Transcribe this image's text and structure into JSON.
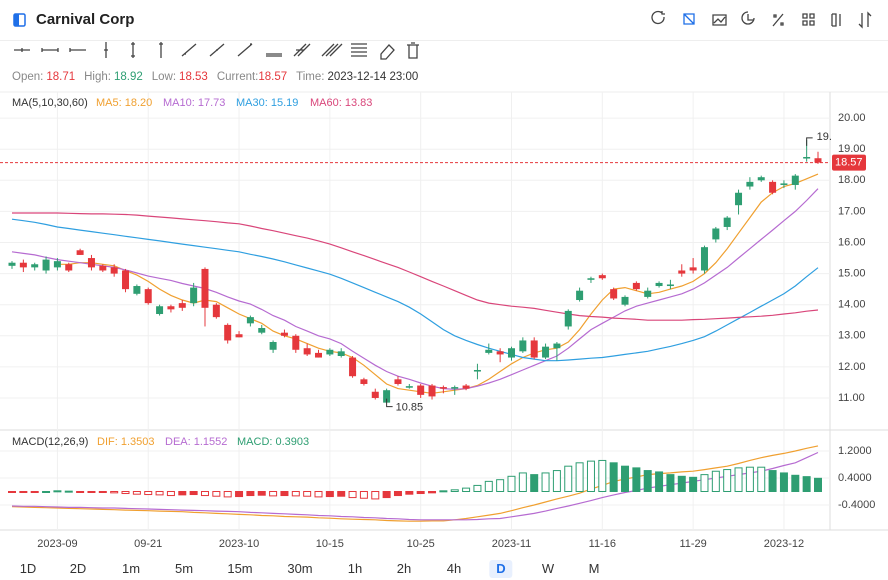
{
  "header": {
    "title": "Carnival Corp"
  },
  "info": [
    {
      "label": "Open:",
      "value": 18.71,
      "color": "#e5373c"
    },
    {
      "label": "High:",
      "value": 18.92,
      "color": "#2e9e72"
    },
    {
      "label": "Low:",
      "value": 18.53,
      "color": "#e5373c"
    },
    {
      "label": "Current:",
      "value": 18.57,
      "color": "#e5373c"
    },
    {
      "label": "Time:",
      "value": "2023-12-14 23:00",
      "color": "#333333"
    }
  ],
  "chart_data": [
    {
      "type": "candlestick",
      "title": "MA(5,10,30,60)",
      "categories": [
        null,
        null,
        null,
        null,
        "2023-09",
        null,
        null,
        null,
        null,
        null,
        null,
        null,
        "09-21",
        null,
        null,
        null,
        null,
        null,
        null,
        null,
        "2023-10",
        null,
        null,
        null,
        null,
        null,
        null,
        null,
        "10-15",
        null,
        null,
        null,
        null,
        null,
        null,
        null,
        "10-25",
        null,
        null,
        null,
        null,
        null,
        null,
        null,
        "2023-11",
        null,
        null,
        null,
        null,
        null,
        null,
        null,
        "11-16",
        null,
        null,
        null,
        null,
        null,
        null,
        null,
        "11-29",
        null,
        null,
        null,
        null,
        null,
        null,
        null,
        "2023-12",
        null,
        null,
        null
      ],
      "open": [
        15.25,
        15.35,
        15.2,
        15.1,
        15.2,
        15.3,
        15.75,
        15.5,
        15.25,
        15.2,
        15.1,
        14.35,
        14.5,
        13.7,
        13.95,
        14.05,
        14.05,
        15.15,
        14.0,
        13.35,
        13.05,
        13.4,
        13.1,
        12.55,
        13.1,
        13.0,
        12.6,
        12.45,
        12.4,
        12.35,
        12.3,
        11.6,
        11.2,
        10.85,
        11.6,
        11.33,
        11.4,
        11.4,
        11.35,
        11.3,
        11.4,
        11.85,
        12.45,
        12.5,
        12.3,
        12.5,
        12.85,
        12.3,
        12.6,
        13.3,
        14.15,
        14.8,
        14.95,
        14.5,
        14.0,
        14.7,
        14.25,
        14.6,
        14.6,
        15.1,
        15.2,
        15.1,
        16.1,
        16.5,
        17.2,
        17.8,
        18.0,
        17.95,
        17.85,
        17.85,
        18.7,
        18.71
      ],
      "high": [
        15.4,
        15.45,
        15.35,
        15.55,
        15.5,
        15.35,
        15.8,
        15.6,
        15.3,
        15.3,
        15.15,
        14.65,
        14.55,
        14.0,
        14.0,
        14.15,
        14.7,
        15.2,
        14.05,
        13.4,
        13.15,
        13.65,
        13.35,
        12.85,
        13.2,
        13.05,
        12.75,
        12.55,
        12.6,
        12.6,
        12.35,
        11.65,
        11.3,
        11.3,
        11.7,
        11.45,
        11.45,
        11.45,
        11.4,
        11.4,
        11.45,
        12.1,
        12.75,
        12.6,
        12.65,
        12.95,
        12.95,
        12.75,
        12.8,
        13.85,
        14.55,
        14.9,
        15.0,
        14.55,
        14.3,
        14.75,
        14.55,
        14.75,
        14.8,
        15.3,
        15.5,
        15.9,
        16.5,
        16.85,
        17.7,
        18.1,
        18.15,
        18.0,
        18.0,
        18.2,
        19.3,
        18.92
      ],
      "low": [
        15.15,
        15.05,
        15.1,
        15.0,
        15.1,
        15.05,
        15.6,
        15.1,
        15.05,
        14.9,
        14.4,
        14.3,
        14.0,
        13.65,
        13.75,
        13.8,
        13.95,
        13.3,
        13.55,
        12.75,
        12.95,
        13.3,
        13.05,
        12.45,
        12.95,
        12.45,
        12.35,
        12.3,
        12.35,
        12.3,
        11.65,
        11.4,
        10.95,
        10.85,
        11.4,
        11.3,
        11.0,
        10.95,
        11.15,
        11.1,
        11.25,
        11.6,
        12.4,
        12.15,
        12.2,
        12.45,
        12.25,
        12.25,
        12.2,
        13.2,
        14.1,
        14.7,
        14.8,
        14.15,
        13.95,
        14.45,
        14.2,
        14.55,
        14.5,
        14.9,
        15.0,
        15.0,
        16.0,
        16.4,
        16.9,
        17.7,
        17.95,
        17.55,
        17.75,
        17.7,
        18.6,
        18.53
      ],
      "close": [
        15.35,
        15.2,
        15.3,
        15.45,
        15.4,
        15.1,
        15.6,
        15.2,
        15.1,
        15.0,
        14.5,
        14.6,
        14.05,
        13.95,
        13.85,
        13.9,
        14.55,
        13.9,
        13.6,
        12.85,
        12.95,
        13.6,
        13.25,
        12.8,
        13.0,
        12.55,
        12.4,
        12.3,
        12.55,
        12.5,
        11.7,
        11.45,
        11.0,
        11.25,
        11.45,
        11.38,
        11.1,
        11.05,
        11.3,
        11.35,
        11.3,
        11.9,
        12.55,
        12.4,
        12.6,
        12.85,
        12.3,
        12.65,
        12.75,
        13.8,
        14.45,
        14.85,
        14.85,
        14.2,
        14.25,
        14.5,
        14.45,
        14.7,
        14.65,
        15.0,
        15.1,
        15.85,
        16.45,
        16.8,
        17.6,
        17.95,
        18.1,
        17.6,
        17.9,
        18.15,
        18.75,
        18.57
      ],
      "up_color": "#2e9e72",
      "down_color": "#e5373c",
      "series": [
        {
          "name": "MA5",
          "label": "MA5: 18.20",
          "color": "#f0a030",
          "values": [
            null,
            null,
            null,
            null,
            15.3,
            15.3,
            15.35,
            15.35,
            15.3,
            15.25,
            15.1,
            14.95,
            14.75,
            14.5,
            14.3,
            14.15,
            14.05,
            14.15,
            14.1,
            13.9,
            13.7,
            13.55,
            13.4,
            13.15,
            13.0,
            12.9,
            12.75,
            12.6,
            12.5,
            12.45,
            12.3,
            12.05,
            11.75,
            11.45,
            11.3,
            11.25,
            11.2,
            11.15,
            11.2,
            11.25,
            11.3,
            11.4,
            11.6,
            11.85,
            12.1,
            12.3,
            12.45,
            12.55,
            12.6,
            12.8,
            13.2,
            13.7,
            14.15,
            14.5,
            14.55,
            14.45,
            14.35,
            14.4,
            14.5,
            14.6,
            14.75,
            15.0,
            15.35,
            15.8,
            16.3,
            16.8,
            17.3,
            17.6,
            17.8,
            17.9,
            18.05,
            18.2
          ]
        },
        {
          "name": "MA10",
          "label": "MA10: 17.73",
          "color": "#b66bd1",
          "values": [
            15.7,
            15.65,
            15.6,
            15.52,
            15.45,
            15.4,
            15.35,
            15.3,
            15.25,
            15.2,
            15.12,
            15.02,
            14.92,
            14.85,
            14.78,
            14.68,
            14.6,
            14.52,
            14.4,
            14.25,
            14.12,
            14.02,
            13.85,
            13.65,
            13.5,
            13.3,
            13.15,
            13.0,
            12.9,
            12.75,
            12.5,
            12.28,
            12.05,
            11.85,
            11.7,
            11.6,
            11.48,
            11.38,
            11.3,
            11.28,
            11.3,
            11.38,
            11.48,
            11.6,
            11.75,
            11.9,
            12.05,
            12.2,
            12.35,
            12.6,
            12.9,
            13.2,
            13.4,
            13.6,
            13.8,
            13.95,
            14.05,
            14.15,
            14.25,
            14.35,
            14.5,
            14.7,
            14.95,
            15.2,
            15.5,
            15.8,
            16.1,
            16.4,
            16.7,
            17.0,
            17.35,
            17.73
          ]
        },
        {
          "name": "MA30",
          "label": "MA30: 15.19",
          "color": "#2f9fe0",
          "values": [
            16.75,
            16.7,
            16.65,
            16.58,
            16.5,
            16.45,
            16.4,
            16.35,
            16.3,
            16.25,
            16.2,
            16.15,
            16.1,
            16.05,
            16.0,
            15.95,
            15.9,
            15.85,
            15.8,
            15.75,
            15.7,
            15.62,
            15.55,
            15.47,
            15.38,
            15.28,
            15.18,
            15.08,
            14.98,
            14.85,
            14.7,
            14.55,
            14.4,
            14.25,
            14.1,
            13.92,
            13.7,
            13.45,
            13.2,
            13.0,
            12.85,
            12.72,
            12.6,
            12.5,
            12.4,
            12.3,
            12.25,
            12.2,
            12.2,
            12.22,
            12.25,
            12.28,
            12.3,
            12.35,
            12.4,
            12.45,
            12.5,
            12.58,
            12.66,
            12.75,
            12.85,
            12.97,
            13.15,
            13.35,
            13.55,
            13.75,
            13.95,
            14.15,
            14.35,
            14.6,
            14.9,
            15.19
          ]
        },
        {
          "name": "MA60",
          "label": "MA60: 13.83",
          "color": "#d9467a",
          "values": [
            16.95,
            16.95,
            16.95,
            16.95,
            16.95,
            16.94,
            16.93,
            16.92,
            16.92,
            16.91,
            16.9,
            16.88,
            16.85,
            16.82,
            16.79,
            16.76,
            16.73,
            16.7,
            16.67,
            16.63,
            16.6,
            16.53,
            16.45,
            16.38,
            16.3,
            16.22,
            16.14,
            16.05,
            15.95,
            15.83,
            15.7,
            15.58,
            15.45,
            15.32,
            15.2,
            15.05,
            14.9,
            14.75,
            14.6,
            14.45,
            14.3,
            14.15,
            14.05,
            14.0,
            13.95,
            13.92,
            13.88,
            13.82,
            13.76,
            13.7,
            13.65,
            13.62,
            13.6,
            13.57,
            13.55,
            13.53,
            13.5,
            13.5,
            13.5,
            13.5,
            13.52,
            13.53,
            13.55,
            13.57,
            13.59,
            13.61,
            13.63,
            13.66,
            13.7,
            13.74,
            13.79,
            13.83
          ]
        }
      ],
      "annotations": {
        "high": "19.",
        "low": "10.85"
      },
      "ylim": [
        9.97,
        20.84
      ],
      "yticks": [
        {
          "value": 20,
          "label": "20.00"
        },
        {
          "value": 19,
          "label": "19.00"
        },
        {
          "value": 18,
          "label": "18.00"
        },
        {
          "value": 17,
          "label": "17.00"
        },
        {
          "value": 16,
          "label": "16.00"
        },
        {
          "value": 15,
          "label": "15.00"
        },
        {
          "value": 14,
          "label": "14.00"
        },
        {
          "value": 13,
          "label": "13.00"
        },
        {
          "value": 12,
          "label": "12.00"
        },
        {
          "value": 11,
          "label": "11.00"
        }
      ],
      "grid": true
    },
    {
      "type": "macd",
      "title": "MACD(12,26,9)",
      "series": [
        {
          "name": "DIF",
          "label": "DIF: 1.3503",
          "color": "#f0a030",
          "kind": "line",
          "values": [
            -0.45,
            -0.46,
            -0.47,
            -0.48,
            -0.49,
            -0.5,
            -0.51,
            -0.52,
            -0.53,
            -0.54,
            -0.55,
            -0.56,
            -0.57,
            -0.58,
            -0.59,
            -0.6,
            -0.62,
            -0.63,
            -0.65,
            -0.66,
            -0.68,
            -0.69,
            -0.71,
            -0.72,
            -0.74,
            -0.75,
            -0.76,
            -0.78,
            -0.79,
            -0.81,
            -0.82,
            -0.83,
            -0.84,
            -0.86,
            -0.87,
            -0.88,
            -0.88,
            -0.87,
            -0.87,
            -0.84,
            -0.8,
            -0.75,
            -0.7,
            -0.65,
            -0.57,
            -0.48,
            -0.4,
            -0.31,
            -0.22,
            -0.14,
            -0.05,
            0.07,
            0.18,
            0.3,
            0.37,
            0.43,
            0.5,
            0.53,
            0.55,
            0.58,
            0.6,
            0.65,
            0.7,
            0.75,
            0.83,
            0.92,
            1.0,
            1.07,
            1.13,
            1.2,
            1.28,
            1.3503
          ]
        },
        {
          "name": "DEA",
          "label": "DEA: 1.1552",
          "color": "#b66bd1",
          "kind": "line",
          "values": [
            -0.43,
            -0.44,
            -0.44,
            -0.45,
            -0.46,
            -0.47,
            -0.47,
            -0.48,
            -0.49,
            -0.49,
            -0.5,
            -0.51,
            -0.52,
            -0.53,
            -0.54,
            -0.55,
            -0.56,
            -0.57,
            -0.58,
            -0.59,
            -0.6,
            -0.62,
            -0.63,
            -0.65,
            -0.66,
            -0.68,
            -0.69,
            -0.71,
            -0.72,
            -0.74,
            -0.75,
            -0.77,
            -0.78,
            -0.8,
            -0.81,
            -0.83,
            -0.84,
            -0.84,
            -0.84,
            -0.84,
            -0.84,
            -0.83,
            -0.81,
            -0.8,
            -0.75,
            -0.7,
            -0.65,
            -0.58,
            -0.5,
            -0.43,
            -0.35,
            -0.27,
            -0.18,
            -0.1,
            -0.03,
            0.03,
            0.1,
            0.15,
            0.2,
            0.25,
            0.3,
            0.35,
            0.4,
            0.45,
            0.5,
            0.55,
            0.6,
            0.68,
            0.77,
            0.85,
            1.0,
            1.1552
          ]
        },
        {
          "name": "MACD",
          "label": "MACD: 0.3903",
          "color": "#2e9e72",
          "neg_color": "#e5373c",
          "kind": "bar",
          "values": [
            -0.02,
            -0.03,
            -0.03,
            0.0,
            0.02,
            0.01,
            -0.01,
            -0.02,
            -0.03,
            -0.04,
            -0.06,
            -0.08,
            -0.09,
            -0.1,
            -0.12,
            -0.1,
            -0.09,
            -0.12,
            -0.14,
            -0.16,
            -0.15,
            -0.12,
            -0.11,
            -0.13,
            -0.12,
            -0.13,
            -0.14,
            -0.16,
            -0.15,
            -0.14,
            -0.18,
            -0.2,
            -0.22,
            -0.18,
            -0.12,
            -0.08,
            -0.06,
            -0.04,
            0.02,
            0.05,
            0.1,
            0.18,
            0.3,
            0.35,
            0.45,
            0.55,
            0.5,
            0.55,
            0.62,
            0.75,
            0.85,
            0.9,
            0.92,
            0.85,
            0.75,
            0.7,
            0.62,
            0.58,
            0.5,
            0.45,
            0.42,
            0.5,
            0.6,
            0.65,
            0.7,
            0.72,
            0.72,
            0.62,
            0.55,
            0.48,
            0.44,
            0.3903
          ]
        }
      ],
      "ylim": [
        -1.141,
        1.763
      ],
      "yticks": [
        {
          "value": 1.2,
          "label": "1.2000"
        },
        {
          "value": 0.4,
          "label": "0.4000"
        },
        {
          "value": -0.4,
          "label": "-0.4000"
        }
      ]
    }
  ],
  "periods": {
    "items": [
      "1D",
      "2D",
      "1m",
      "5m",
      "15m",
      "30m",
      "1h",
      "2h",
      "4h",
      "D",
      "W",
      "M"
    ],
    "active": "D"
  }
}
